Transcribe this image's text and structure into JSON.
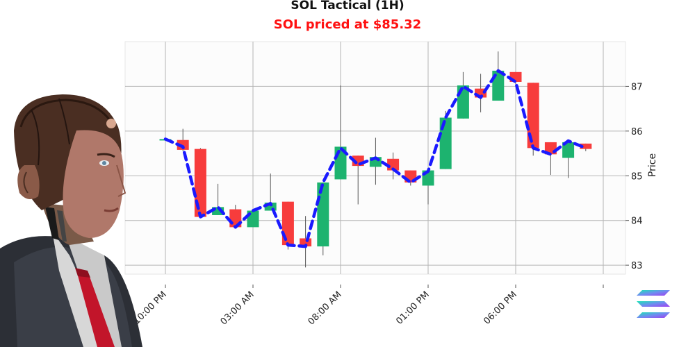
{
  "chart_data": {
    "type": "candlestick",
    "title": "SOL Tactical (1H)",
    "subtitle": "SOL priced at $85.32",
    "ylabel": "Price",
    "xlabel": "",
    "ylim": [
      82.8,
      88.0
    ],
    "yticks": [
      83,
      84,
      85,
      86,
      87
    ],
    "grid": true,
    "x_tick_labels": [
      {
        "index": 0,
        "label": "10:00 PM"
      },
      {
        "index": 5,
        "label": "03:00 AM"
      },
      {
        "index": 10,
        "label": "08:00 AM"
      },
      {
        "index": 15,
        "label": "01:00 PM"
      },
      {
        "index": 20,
        "label": "06:00 PM"
      },
      {
        "index": 25,
        "label": ""
      }
    ],
    "candles": [
      {
        "o": 85.82,
        "h": 85.84,
        "l": 85.8,
        "c": 85.82
      },
      {
        "o": 85.8,
        "h": 86.05,
        "l": 85.55,
        "c": 85.58
      },
      {
        "o": 85.6,
        "h": 85.62,
        "l": 84.06,
        "c": 84.08
      },
      {
        "o": 84.12,
        "h": 84.82,
        "l": 84.12,
        "c": 84.3
      },
      {
        "o": 84.25,
        "h": 84.35,
        "l": 83.82,
        "c": 83.85
      },
      {
        "o": 83.85,
        "h": 84.25,
        "l": 83.85,
        "c": 84.22
      },
      {
        "o": 84.22,
        "h": 85.05,
        "l": 84.22,
        "c": 84.4
      },
      {
        "o": 84.42,
        "h": 84.42,
        "l": 83.35,
        "c": 83.45
      },
      {
        "o": 83.6,
        "h": 84.1,
        "l": 82.95,
        "c": 83.42
      },
      {
        "o": 83.42,
        "h": 84.85,
        "l": 83.22,
        "c": 84.85
      },
      {
        "o": 84.92,
        "h": 87.02,
        "l": 84.92,
        "c": 85.65
      },
      {
        "o": 85.45,
        "h": 85.45,
        "l": 84.36,
        "c": 85.22
      },
      {
        "o": 85.2,
        "h": 85.85,
        "l": 84.8,
        "c": 85.42
      },
      {
        "o": 85.38,
        "h": 85.52,
        "l": 84.92,
        "c": 85.12
      },
      {
        "o": 85.12,
        "h": 85.12,
        "l": 84.78,
        "c": 84.85
      },
      {
        "o": 84.78,
        "h": 85.15,
        "l": 84.36,
        "c": 85.12
      },
      {
        "o": 85.15,
        "h": 86.45,
        "l": 85.15,
        "c": 86.3
      },
      {
        "o": 86.28,
        "h": 87.32,
        "l": 86.28,
        "c": 87.02
      },
      {
        "o": 86.95,
        "h": 87.28,
        "l": 86.42,
        "c": 86.75
      },
      {
        "o": 86.68,
        "h": 87.78,
        "l": 86.68,
        "c": 87.35
      },
      {
        "o": 87.32,
        "h": 87.32,
        "l": 87.05,
        "c": 87.1
      },
      {
        "o": 87.08,
        "h": 87.08,
        "l": 85.45,
        "c": 85.62
      },
      {
        "o": 85.75,
        "h": 85.75,
        "l": 85.02,
        "c": 85.48
      },
      {
        "o": 85.4,
        "h": 85.8,
        "l": 84.95,
        "c": 85.75
      },
      {
        "o": 85.72,
        "h": 85.72,
        "l": 85.55,
        "c": 85.6
      }
    ],
    "trend_line": [
      85.82,
      85.65,
      84.08,
      84.3,
      83.85,
      84.22,
      84.38,
      83.45,
      83.42,
      84.85,
      85.62,
      85.25,
      85.4,
      85.15,
      84.85,
      85.1,
      86.3,
      87.0,
      86.75,
      87.35,
      87.1,
      85.62,
      85.48,
      85.78,
      85.62
    ],
    "colors": {
      "up": "#1db36f",
      "down": "#f73c3c",
      "trend": "#1a1aff",
      "subtitle": "#ff1111"
    }
  },
  "decor": {
    "avatar": "humanoid-robot-businessman-illustration",
    "logo": "solana-logo-icon"
  }
}
